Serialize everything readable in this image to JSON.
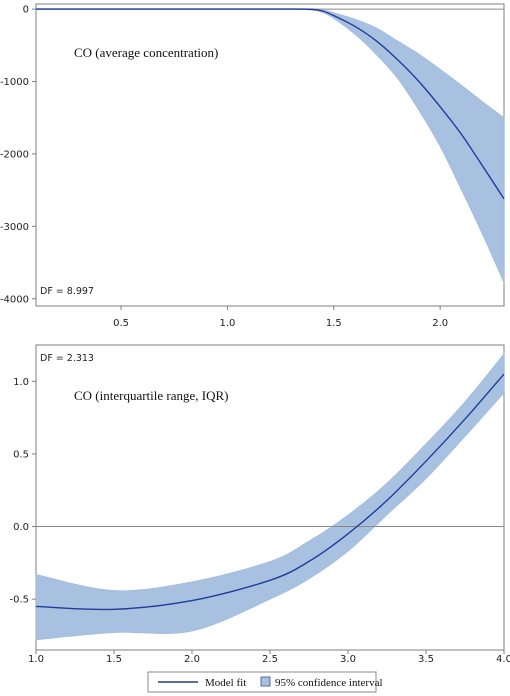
{
  "chart_data": [
    {
      "type": "line",
      "title": "CO (average concentration)",
      "annotation": "DF = 8.997",
      "xlim": [
        0.1,
        2.3
      ],
      "ylim": [
        -4100,
        70
      ],
      "xticks": [
        0.5,
        1.0,
        1.5,
        2.0
      ],
      "xtick_labels": [
        "0.5",
        "1.0",
        "1.5",
        "2.0"
      ],
      "yticks": [
        0,
        -1000,
        -2000,
        -3000,
        -4000
      ],
      "ytick_labels": [
        "0",
        "-1000",
        "-2000",
        "-3000",
        "-4000"
      ],
      "reference_line": 0,
      "series": [
        {
          "name": "Model fit",
          "x": [
            0.1,
            0.5,
            1.0,
            1.3,
            1.4,
            1.45,
            1.5,
            1.6,
            1.7,
            1.8,
            1.9,
            2.0,
            2.1,
            2.2,
            2.3
          ],
          "y": [
            0,
            0,
            0,
            0,
            -5,
            -30,
            -90,
            -240,
            -440,
            -700,
            -1000,
            -1350,
            -1730,
            -2170,
            -2620
          ]
        },
        {
          "name": "95% confidence interval lower",
          "x": [
            0.1,
            0.5,
            1.0,
            1.3,
            1.4,
            1.45,
            1.5,
            1.6,
            1.7,
            1.8,
            1.9,
            2.0,
            2.1,
            2.2,
            2.3
          ],
          "y": [
            -5,
            -5,
            -5,
            -5,
            -15,
            -50,
            -130,
            -350,
            -630,
            -960,
            -1400,
            -1900,
            -2500,
            -3120,
            -3780
          ]
        },
        {
          "name": "95% confidence interval upper",
          "x": [
            0.1,
            0.5,
            1.0,
            1.3,
            1.4,
            1.45,
            1.5,
            1.6,
            1.7,
            1.8,
            1.9,
            2.0,
            2.1,
            2.2,
            2.3
          ],
          "y": [
            5,
            5,
            5,
            5,
            5,
            -10,
            -50,
            -140,
            -260,
            -440,
            -620,
            -830,
            -1050,
            -1280,
            -1500
          ]
        }
      ]
    },
    {
      "type": "line",
      "title": "CO (interquartile range, IQR)",
      "annotation": "DF = 2.313",
      "xlim": [
        1.0,
        4.0
      ],
      "ylim": [
        -0.85,
        1.25
      ],
      "xticks": [
        1.0,
        1.5,
        2.0,
        2.5,
        3.0,
        3.5,
        4.0
      ],
      "xtick_labels": [
        "1.0",
        "1.5",
        "2.0",
        "2.5",
        "3.0",
        "3.5",
        "4.0"
      ],
      "yticks": [
        1.0,
        0.5,
        0.0,
        -0.5
      ],
      "ytick_labels": [
        "1.0",
        "0.5",
        "0.0",
        "-0.5"
      ],
      "reference_line": 0,
      "series": [
        {
          "name": "Model fit",
          "x": [
            1.0,
            1.5,
            2.0,
            2.5,
            2.75,
            3.0,
            3.25,
            3.5,
            3.75,
            4.0
          ],
          "y": [
            -0.55,
            -0.57,
            -0.51,
            -0.37,
            -0.24,
            -0.05,
            0.18,
            0.45,
            0.74,
            1.05
          ]
        },
        {
          "name": "95% confidence interval lower",
          "x": [
            1.0,
            1.5,
            2.0,
            2.5,
            2.75,
            3.0,
            3.25,
            3.5,
            3.75,
            4.0
          ],
          "y": [
            -0.78,
            -0.73,
            -0.72,
            -0.5,
            -0.36,
            -0.17,
            0.08,
            0.33,
            0.62,
            0.92
          ]
        },
        {
          "name": "95% confidence interval upper",
          "x": [
            1.0,
            1.5,
            2.0,
            2.5,
            2.75,
            3.0,
            3.25,
            3.5,
            3.75,
            4.0
          ],
          "y": [
            -0.33,
            -0.44,
            -0.38,
            -0.24,
            -0.1,
            0.08,
            0.3,
            0.57,
            0.86,
            1.19
          ]
        }
      ]
    }
  ],
  "legend": {
    "model_fit": "Model fit",
    "ci": "95% confidence interval"
  },
  "colors": {
    "line": "#1f3d99",
    "band": "#a9c1e1",
    "band_edge": "#9fb7dc",
    "ref": "#8a8a8a",
    "axis": "#7f7f7f"
  }
}
